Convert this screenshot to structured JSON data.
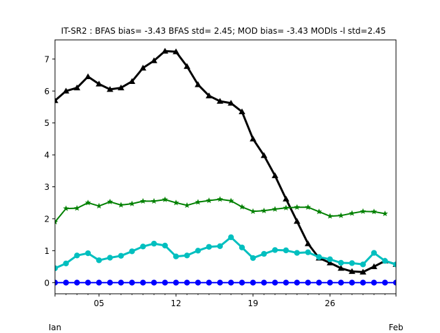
{
  "chart_data": {
    "type": "line",
    "title": "IT-SR2   : BFAS bias= -3.43 BFAS std= 2.45; MOD bias= -3.43 MODls -l std=2.45",
    "xlabel": "",
    "ylabel": "",
    "x": [
      "2024-01-01",
      "2024-01-02",
      "2024-01-03",
      "2024-01-04",
      "2024-01-05",
      "2024-01-06",
      "2024-01-07",
      "2024-01-08",
      "2024-01-09",
      "2024-01-10",
      "2024-01-11",
      "2024-01-12",
      "2024-01-13",
      "2024-01-14",
      "2024-01-15",
      "2024-01-16",
      "2024-01-17",
      "2024-01-18",
      "2024-01-19",
      "2024-01-20",
      "2024-01-21",
      "2024-01-22",
      "2024-01-23",
      "2024-01-24",
      "2024-01-25",
      "2024-01-26",
      "2024-01-27",
      "2024-01-28",
      "2024-01-29",
      "2024-01-30",
      "2024-01-31",
      "2024-02-01"
    ],
    "xlim": [
      "2024-01-01",
      "2024-02-01"
    ],
    "ylim": [
      -0.35,
      7.6
    ],
    "yticks": [
      0,
      1,
      2,
      3,
      4,
      5,
      6,
      7
    ],
    "xticks": [
      {
        "date": "2024-01-05",
        "label": "05"
      },
      {
        "date": "2024-01-12",
        "label": "12"
      },
      {
        "date": "2024-01-19",
        "label": "19"
      },
      {
        "date": "2024-01-26",
        "label": "26"
      }
    ],
    "xticks_secondary": [
      {
        "date": "2024-01-01",
        "label": "Jan"
      },
      {
        "date": "2024-02-01",
        "label": "Feb"
      }
    ],
    "grid": false,
    "series": [
      {
        "color": "#000000",
        "marker": "triangle",
        "width": 3,
        "values": [
          5.7,
          6.0,
          6.1,
          6.45,
          6.22,
          6.05,
          6.1,
          6.3,
          6.72,
          6.95,
          7.25,
          7.23,
          6.77,
          6.2,
          5.85,
          5.68,
          5.62,
          5.35,
          4.5,
          3.98,
          3.35,
          2.62,
          1.92,
          1.22,
          0.77,
          0.62,
          0.45,
          0.35,
          0.33,
          0.5,
          0.68,
          0.57
        ]
      },
      {
        "color": "#008000",
        "marker": "star",
        "width": 2,
        "values": [
          1.9,
          2.32,
          2.33,
          2.5,
          2.4,
          2.53,
          2.43,
          2.47,
          2.55,
          2.55,
          2.6,
          2.5,
          2.42,
          2.52,
          2.57,
          2.61,
          2.56,
          2.37,
          2.23,
          2.25,
          2.3,
          2.34,
          2.36,
          2.36,
          2.22,
          2.08,
          2.1,
          2.17,
          2.23,
          2.22,
          2.16,
          null
        ]
      },
      {
        "color": "#00bfbf",
        "marker": "circle",
        "width": 3,
        "values": [
          0.45,
          0.6,
          0.85,
          0.92,
          0.7,
          0.78,
          0.84,
          0.98,
          1.13,
          1.22,
          1.16,
          0.82,
          0.85,
          1.0,
          1.12,
          1.14,
          1.42,
          1.1,
          0.77,
          0.9,
          1.02,
          1.01,
          0.93,
          0.95,
          0.8,
          0.73,
          0.62,
          0.61,
          0.57,
          0.93,
          0.68,
          0.57
        ]
      },
      {
        "color": "#0000ff",
        "marker": "circle",
        "width": 2,
        "values": [
          0,
          0,
          0,
          0,
          0,
          0,
          0,
          0,
          0,
          0,
          0,
          0,
          0,
          0,
          0,
          0,
          0,
          0,
          0,
          0,
          0,
          0,
          0,
          0,
          0,
          0,
          0,
          0,
          0,
          0,
          0,
          0
        ]
      }
    ]
  }
}
